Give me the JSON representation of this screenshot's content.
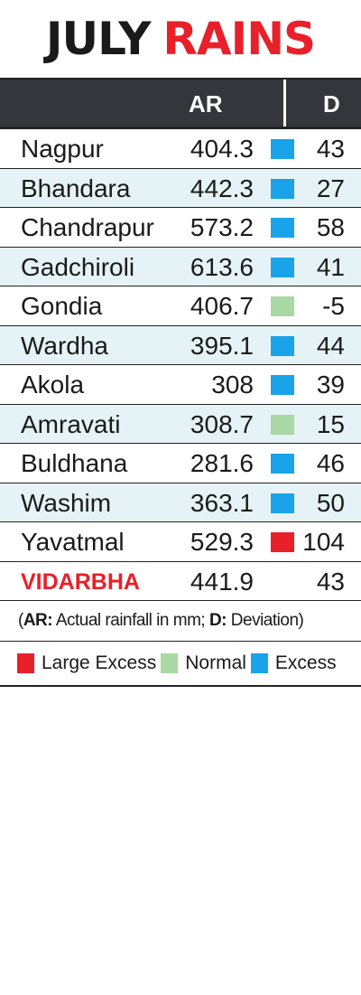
{
  "title": {
    "word1": "JULY",
    "word2": "RAINS"
  },
  "colors": {
    "large_excess": "#e8202a",
    "normal": "#a8d8a3",
    "excess": "#1aa3e8",
    "title_red": "#e8202a",
    "header_bg": "#33363b",
    "alt_row": "#e6f3f6"
  },
  "chart_data": {
    "type": "table",
    "title": "JULY RAINS",
    "columns": [
      "AR",
      "D"
    ],
    "rows": [
      {
        "district": "Nagpur",
        "ar": "404.3",
        "d": "43",
        "category": "excess"
      },
      {
        "district": "Bhandara",
        "ar": "442.3",
        "d": "27",
        "category": "excess"
      },
      {
        "district": "Chandrapur",
        "ar": "573.2",
        "d": "58",
        "category": "excess"
      },
      {
        "district": "Gadchiroli",
        "ar": "613.6",
        "d": "41",
        "category": "excess"
      },
      {
        "district": "Gondia",
        "ar": "406.7",
        "d": "-5",
        "category": "normal"
      },
      {
        "district": "Wardha",
        "ar": "395.1",
        "d": "44",
        "category": "excess"
      },
      {
        "district": "Akola",
        "ar": "308",
        "d": "39",
        "category": "excess"
      },
      {
        "district": "Amravati",
        "ar": "308.7",
        "d": "15",
        "category": "normal"
      },
      {
        "district": "Buldhana",
        "ar": "281.6",
        "d": "46",
        "category": "excess"
      },
      {
        "district": "Washim",
        "ar": "363.1",
        "d": "50",
        "category": "excess"
      },
      {
        "district": "Yavatmal",
        "ar": "529.3",
        "d": "104",
        "category": "large_excess"
      }
    ],
    "total": {
      "district": "VIDARBHA",
      "ar": "441.9",
      "d": "43"
    },
    "note": {
      "open": "(",
      "ar_key": "AR:",
      "ar_text": " Actual rainfall in mm; ",
      "d_key": "D:",
      "d_text": " Deviation)"
    },
    "legend": [
      {
        "label": "Large Excess",
        "category": "large_excess"
      },
      {
        "label": "Normal",
        "category": "normal"
      },
      {
        "label": "Excess",
        "category": "excess"
      }
    ]
  }
}
